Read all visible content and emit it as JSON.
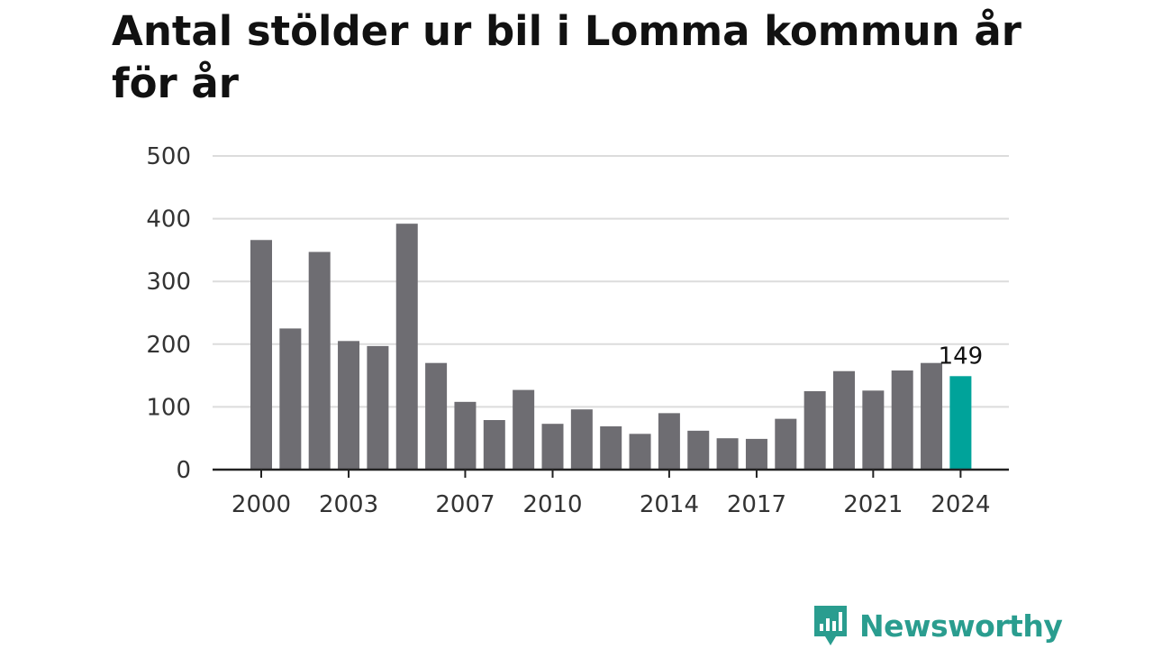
{
  "title": "Antal stölder ur bil i Lomma kommun år för år",
  "logo": {
    "text": "Newsworthy",
    "icon": "newsworthy-logo-icon",
    "color": "#2a9d8f"
  },
  "chart_data": {
    "type": "bar",
    "categories": [
      "2000",
      "2001",
      "2002",
      "2003",
      "2004",
      "2005",
      "2006",
      "2007",
      "2008",
      "2009",
      "2010",
      "2011",
      "2012",
      "2013",
      "2014",
      "2015",
      "2016",
      "2017",
      "2018",
      "2019",
      "2020",
      "2021",
      "2022",
      "2023",
      "2024"
    ],
    "values": [
      366,
      225,
      347,
      205,
      197,
      392,
      170,
      108,
      79,
      127,
      73,
      96,
      69,
      57,
      90,
      62,
      50,
      49,
      81,
      125,
      157,
      126,
      158,
      170,
      149
    ],
    "xtick_labels": [
      "2000",
      "2003",
      "2007",
      "2010",
      "2014",
      "2017",
      "2021",
      "2024"
    ],
    "yticks": [
      0,
      100,
      200,
      300,
      400,
      500
    ],
    "ylim": [
      0,
      500
    ],
    "grid": true,
    "bar_color": "#6e6d72",
    "highlight_color": "#00a39a",
    "highlight_index": 24,
    "highlight_label": "149"
  }
}
